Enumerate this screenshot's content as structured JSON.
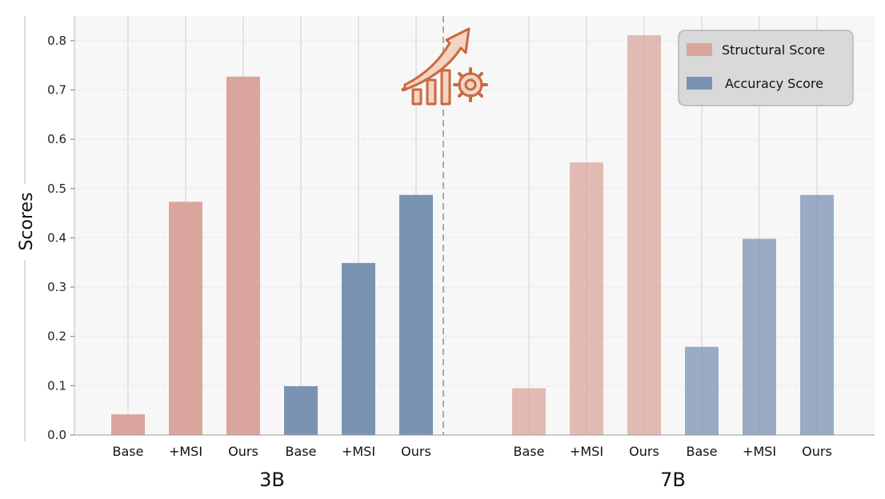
{
  "chart_data": {
    "type": "bar",
    "ylabel": "Scores",
    "ylim": [
      0,
      0.85
    ],
    "yticks": [
      "0.0",
      "0.1",
      "0.2",
      "0.3",
      "0.4",
      "0.5",
      "0.6",
      "0.7",
      "0.8"
    ],
    "grid": true,
    "legend_position": "top-right",
    "legend": [
      "Structural Score",
      "Accuracy Score"
    ],
    "colors": {
      "structural": "#d9a59c",
      "accuracy": "#7a93b3"
    },
    "groups": [
      {
        "name": "3B",
        "categories": [
          "Base",
          "+MSI",
          "Ours",
          "Base",
          "+MSI",
          "Ours"
        ],
        "series": [
          {
            "name": "Structural Score",
            "values": [
              0.042,
              0.473,
              0.727
            ]
          },
          {
            "name": "Accuracy Score",
            "values": [
              0.099,
              0.349,
              0.487
            ]
          }
        ]
      },
      {
        "name": "7B",
        "categories": [
          "Base",
          "+MSI",
          "Ours",
          "Base",
          "+MSI",
          "Ours"
        ],
        "series": [
          {
            "name": "Structural Score",
            "values": [
              0.095,
              0.553,
              0.811
            ]
          },
          {
            "name": "Accuracy Score",
            "values": [
              0.179,
              0.398,
              0.487
            ]
          }
        ]
      }
    ]
  }
}
